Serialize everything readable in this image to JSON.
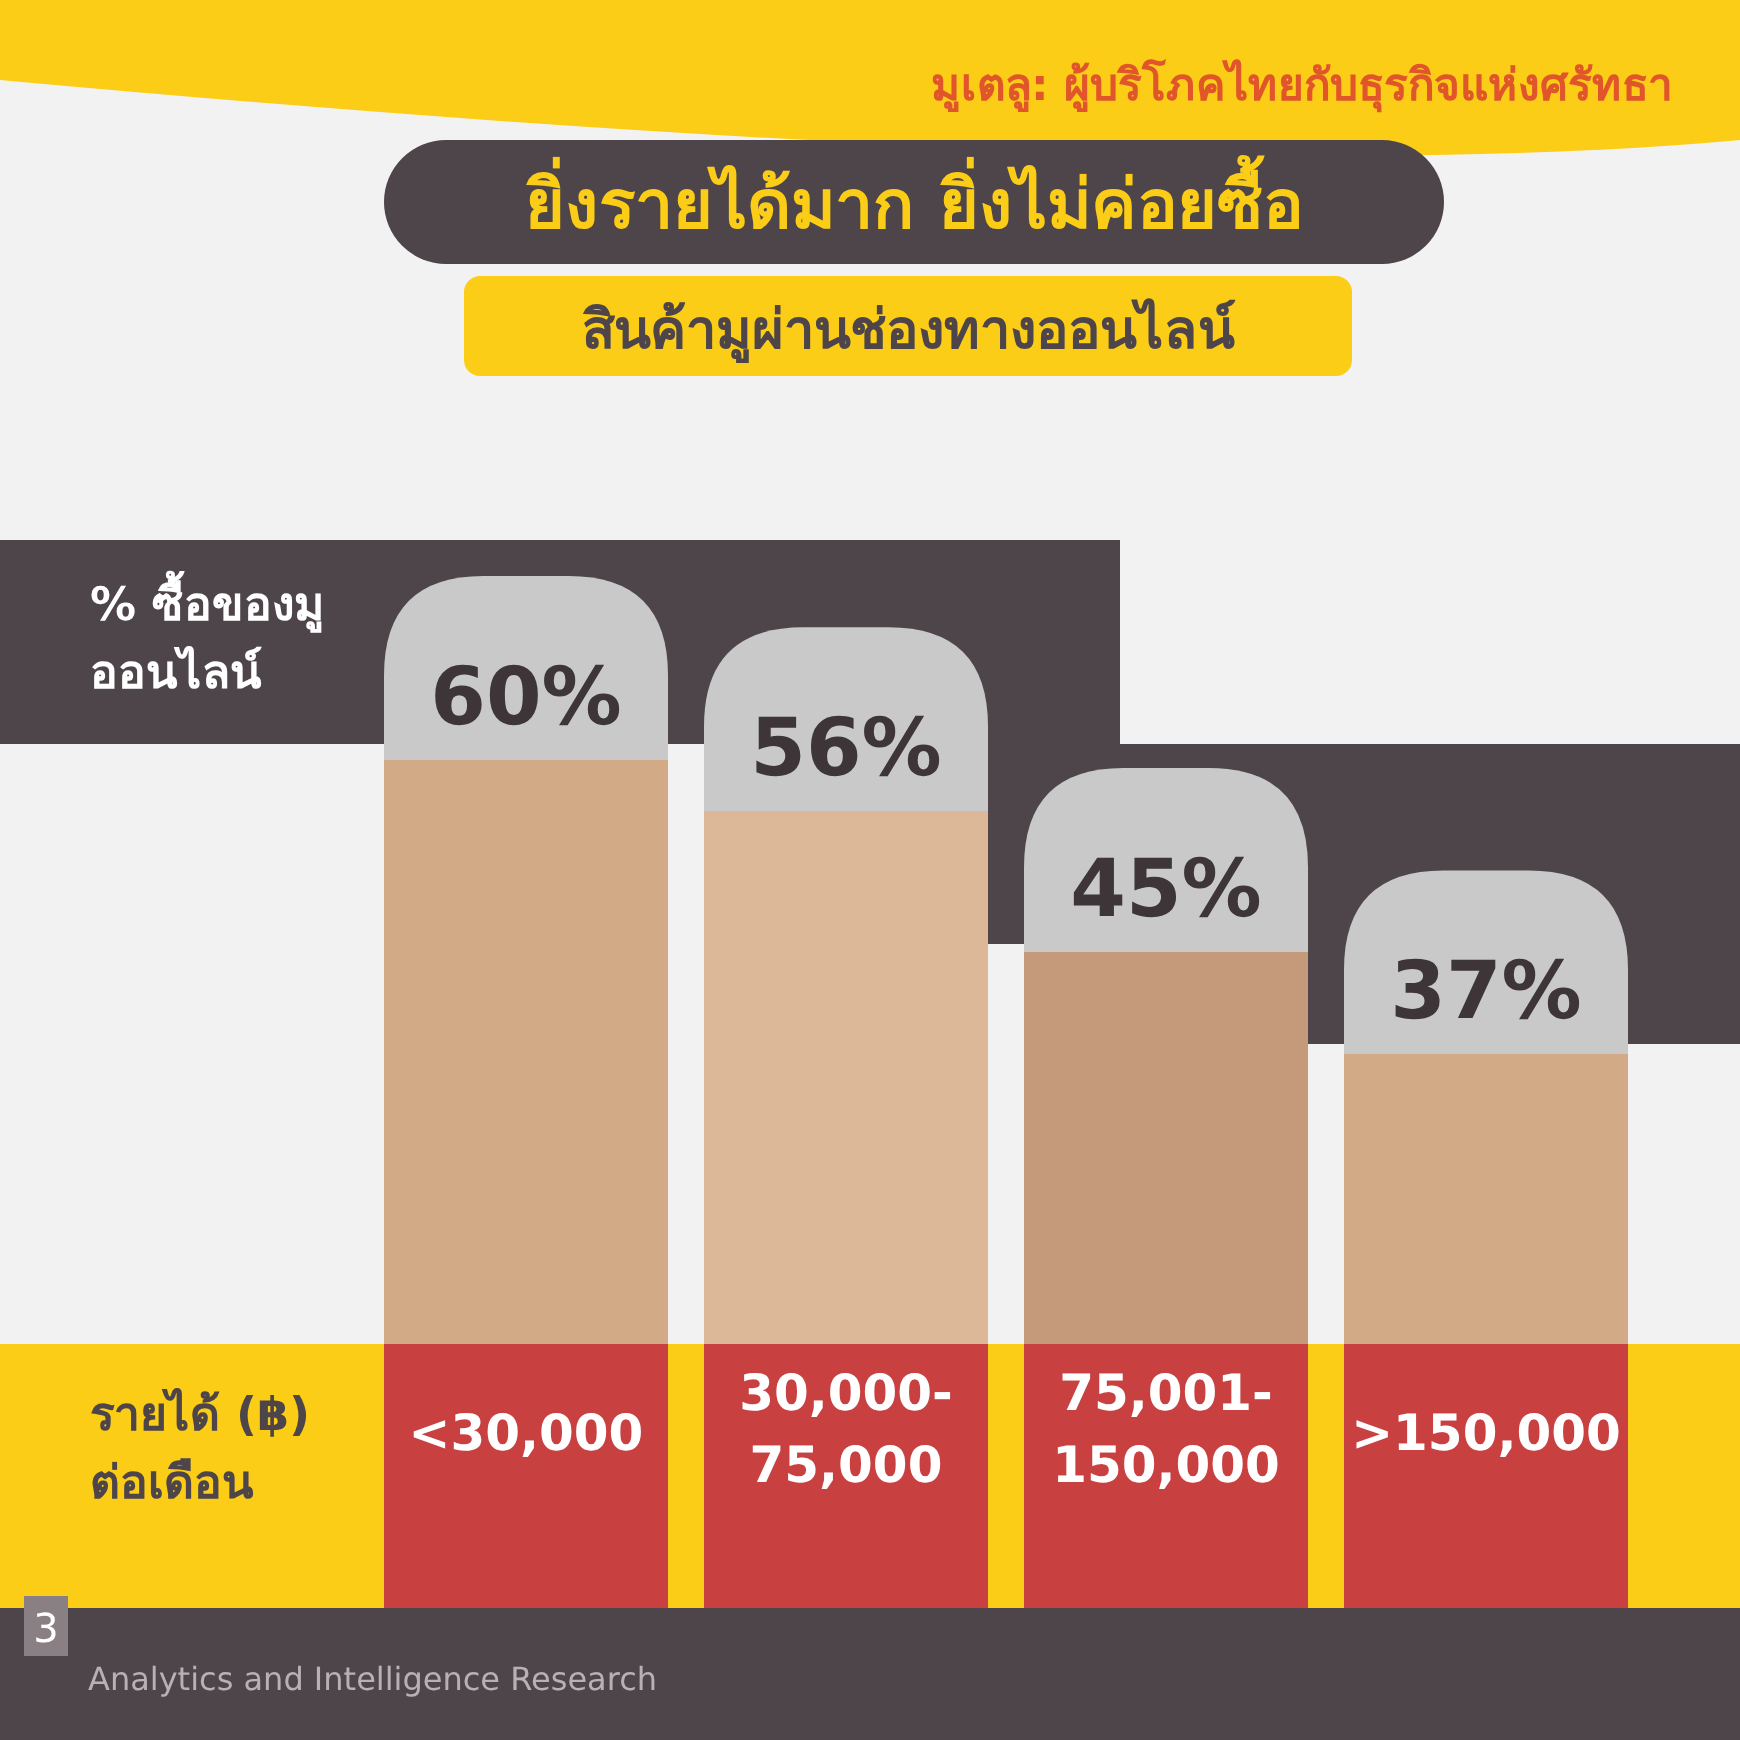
{
  "chart_data": {
    "type": "bar",
    "title": "ยิ่งรายได้มาก ยิ่งไม่ค่อยซื้อ",
    "subtitle": "สินค้ามูผ่านช่องทางออนไลน์",
    "ylabel": "% ซื้อของมู ออนไลน์",
    "xlabel": "รายได้ (฿) ต่อเดือน",
    "categories": [
      "<30,000",
      "30,000-75,000",
      "75,001-150,000",
      ">150,000"
    ],
    "values": [
      60,
      56,
      45,
      37
    ],
    "value_labels": [
      "60%",
      "56%",
      "45%",
      "37%"
    ],
    "colors": [
      "#d2ab86",
      "#dcb898",
      "#c49a7a",
      "#d2ab86"
    ],
    "annotations": [
      "มูเตลู: ผู้บริโภคไทยกับธุรกิจแห่งศรัทธา",
      "3",
      "Analytics and Intelligence Research"
    ]
  }
}
